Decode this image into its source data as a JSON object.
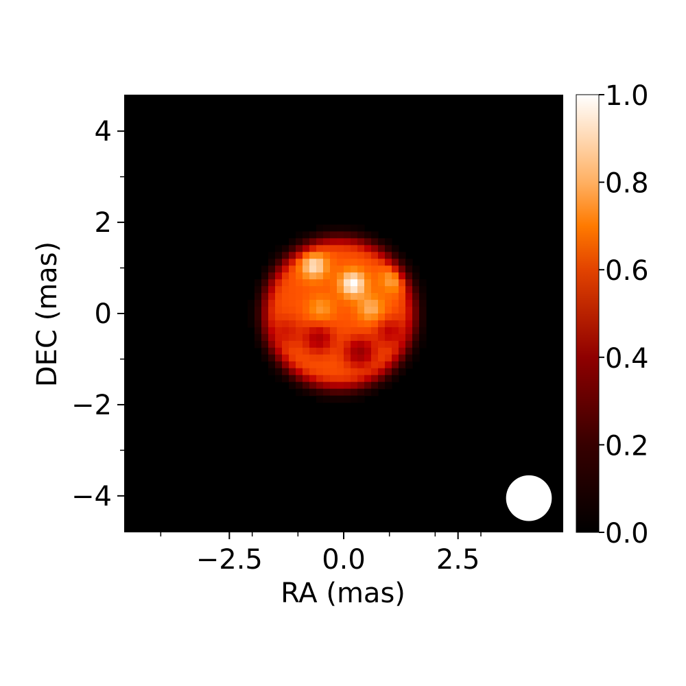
{
  "chart_data": {
    "type": "heatmap",
    "title": "",
    "xlabel": "RA (mas)",
    "ylabel": "DEC (mas)",
    "xlim": [
      -4.8,
      4.8
    ],
    "ylim": [
      -4.8,
      4.8
    ],
    "x_major_ticks": [
      -2.5,
      0.0,
      2.5
    ],
    "x_tick_labels": [
      "−2.5",
      "0.0",
      "2.5"
    ],
    "x_minor_ticks": [
      -4,
      -2,
      -1,
      1,
      2,
      3
    ],
    "y_major_ticks": [
      4,
      2,
      0,
      -2,
      -4
    ],
    "y_tick_labels": [
      "4",
      "2",
      "0",
      "−2",
      "−4"
    ],
    "y_minor_ticks": [
      3,
      1,
      -1,
      -3
    ],
    "colormap": "gist_heat",
    "colorbar": {
      "range": [
        0.0,
        1.0
      ],
      "ticks": [
        1.0,
        0.8,
        0.6,
        0.4,
        0.2,
        0.0
      ],
      "tick_labels": [
        "1.0",
        "0.8",
        "0.6",
        "0.4",
        "0.2",
        "0.0"
      ]
    },
    "grid": false,
    "background_value": 0.0,
    "source": {
      "center": [
        -0.1,
        0.0
      ],
      "radius": 1.65,
      "peak_value": 1.0,
      "bright_spots": [
        {
          "x": 0.2,
          "y": 0.65,
          "value": 1.0
        },
        {
          "x": -0.65,
          "y": 1.05,
          "value": 0.95
        },
        {
          "x": 1.1,
          "y": 0.75,
          "value": 0.85
        },
        {
          "x": -0.5,
          "y": 0.1,
          "value": 0.8
        },
        {
          "x": 0.6,
          "y": 0.1,
          "value": 0.85
        }
      ],
      "dark_spots": [
        {
          "x": -0.55,
          "y": -0.55,
          "value": 0.45
        },
        {
          "x": 0.35,
          "y": -0.85,
          "value": 0.4
        },
        {
          "x": 1.0,
          "y": -0.4,
          "value": 0.5
        },
        {
          "x": -1.25,
          "y": -0.4,
          "value": 0.55
        }
      ]
    },
    "beam": {
      "x": 4.05,
      "y": -4.05,
      "diameter": 1.0,
      "color": "#ffffff"
    }
  }
}
